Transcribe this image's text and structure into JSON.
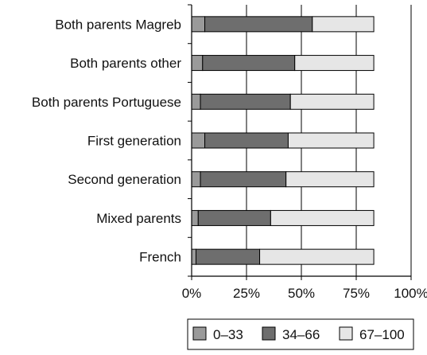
{
  "chart_data": {
    "type": "bar",
    "orientation": "horizontal",
    "stacked": true,
    "categories": [
      "Both parents Magreb",
      "Both parents other",
      "Both parents Portuguese",
      "First generation",
      "Second generation",
      "Mixed parents",
      "French"
    ],
    "series": [
      {
        "name": "0–33",
        "color": "#9a9a9a",
        "values": [
          6,
          5,
          4,
          6,
          4,
          3,
          2
        ]
      },
      {
        "name": "34–66",
        "color": "#6e6e6e",
        "values": [
          49,
          42,
          41,
          38,
          39,
          33,
          29
        ]
      },
      {
        "name": "67–100",
        "color": "#e6e6e6",
        "values": [
          28,
          36,
          38,
          39,
          40,
          47,
          52
        ]
      }
    ],
    "xlim": [
      0,
      100
    ],
    "xticks": [
      "0%",
      "25%",
      "50%",
      "75%",
      "100%"
    ],
    "grid": true,
    "legend_position": "bottom-right"
  }
}
